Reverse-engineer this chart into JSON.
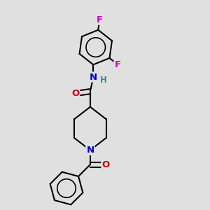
{
  "bg_color": "#e0e0e0",
  "bond_color": "#000000",
  "bond_width": 1.5,
  "atom_colors": {
    "C": "#000000",
    "N": "#0000cc",
    "O": "#cc0000",
    "F": "#cc00cc",
    "H": "#448888"
  },
  "font_size": 9.5
}
